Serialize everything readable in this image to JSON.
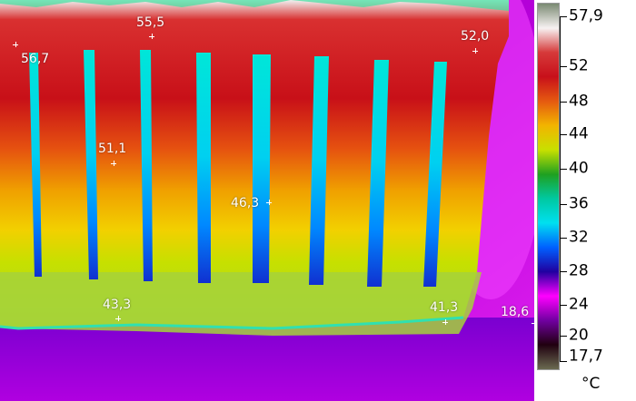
{
  "thermal_image": {
    "description_icon": "thermal-radiator-image",
    "spots": [
      {
        "id": "spot-1",
        "value": "55,5"
      },
      {
        "id": "spot-2",
        "value": "56,7"
      },
      {
        "id": "spot-3",
        "value": "52,0"
      },
      {
        "id": "spot-4",
        "value": "51,1"
      },
      {
        "id": "spot-5",
        "value": "46,3"
      },
      {
        "id": "spot-6",
        "value": "43,3"
      },
      {
        "id": "spot-7",
        "value": "41,3"
      },
      {
        "id": "spot-8",
        "value": "18,6"
      }
    ]
  },
  "scale": {
    "max_label": "57,9",
    "min_label": "17,7",
    "tick_labels": [
      "52",
      "48",
      "44",
      "40",
      "36",
      "32",
      "28",
      "24",
      "20"
    ],
    "unit": "°C",
    "colors": [
      "#7a8a72",
      "#f7f2f2",
      "#d63a3a",
      "#c8101a",
      "#e55a10",
      "#f2b400",
      "#c8e000",
      "#1fa020",
      "#00c8a0",
      "#00e0f0",
      "#0060ff",
      "#2000a0",
      "#ff00ff",
      "#7000a0",
      "#200010",
      "#6a6a50"
    ]
  }
}
